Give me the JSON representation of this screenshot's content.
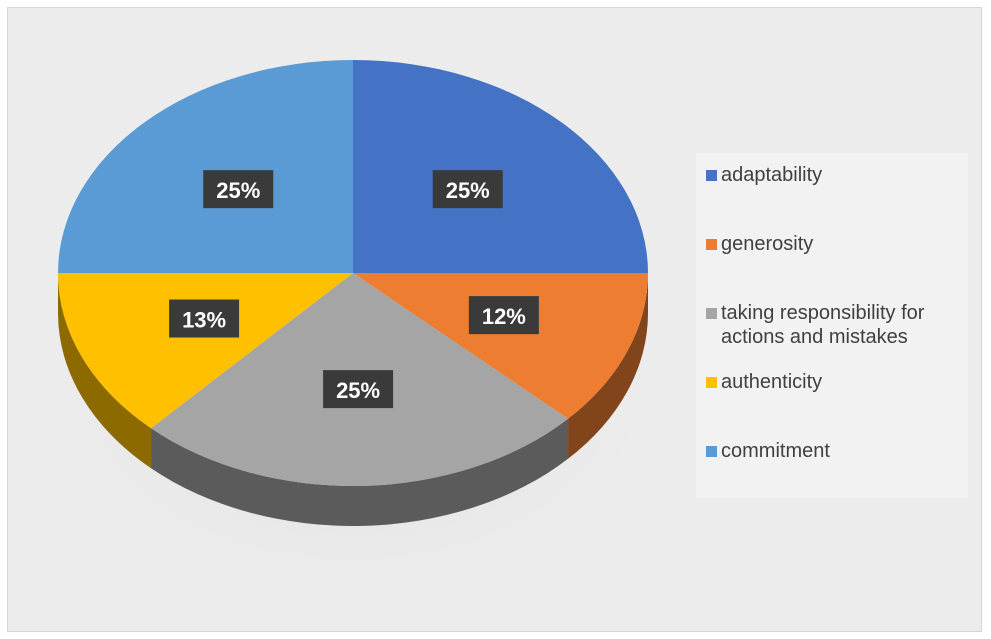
{
  "chart_data": {
    "type": "pie",
    "style": "3d",
    "legend_position": "right",
    "slices": [
      {
        "label": "adaptability",
        "value": 25,
        "display": "25%",
        "color": "#4472C4"
      },
      {
        "label": "generosity",
        "value": 12,
        "display": "12%",
        "color": "#ED7D31"
      },
      {
        "label": "taking responsibility for actions and mistakes",
        "value": 25,
        "display": "25%",
        "color": "#A5A5A5"
      },
      {
        "label": "authenticity",
        "value": 13,
        "display": "13%",
        "color": "#FFC000"
      },
      {
        "label": "commitment",
        "value": 25,
        "display": "25%",
        "color": "#5B9BD5"
      }
    ]
  }
}
